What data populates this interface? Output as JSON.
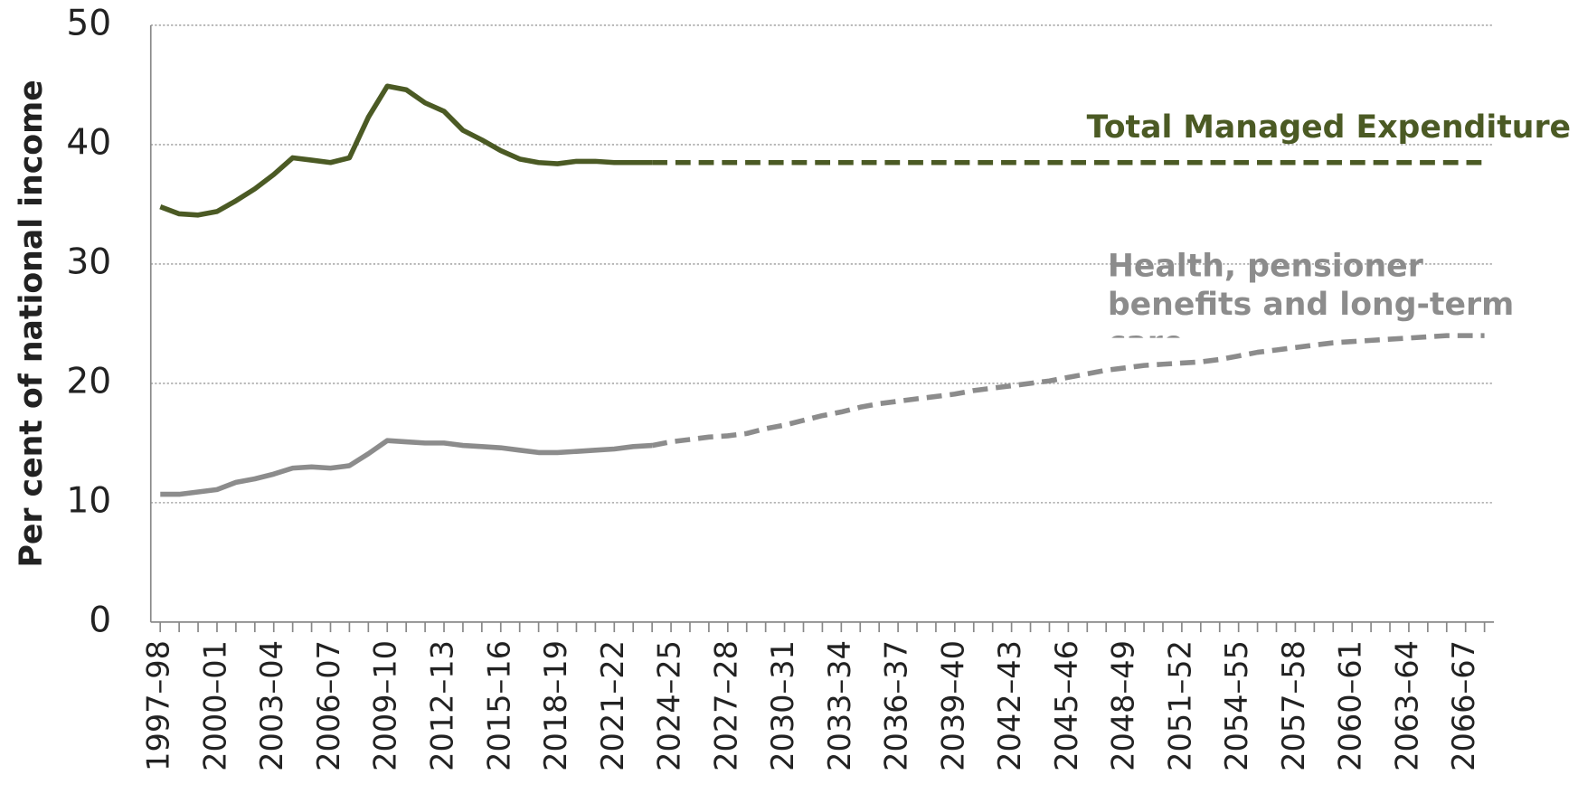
{
  "chart_data": {
    "type": "line",
    "y_label": "Per cent of national income",
    "categories": [
      "1997–98",
      null,
      null,
      "2000–01",
      null,
      null,
      "2003–04",
      null,
      null,
      "2006–07",
      null,
      null,
      "2009–10",
      null,
      null,
      "2012–13",
      null,
      null,
      "2015–16",
      null,
      null,
      "2018–19",
      null,
      null,
      "2021–22",
      null,
      null,
      "2024–25",
      null,
      null,
      "2027–28",
      null,
      null,
      "2030–31",
      null,
      null,
      "2033–34",
      null,
      null,
      "2036–37",
      null,
      null,
      "2039–40",
      null,
      null,
      "2042–43",
      null,
      null,
      "2045–46",
      null,
      null,
      "2048–49",
      null,
      null,
      "2051–52",
      null,
      null,
      "2054–55",
      null,
      null,
      "2057–58",
      null,
      null,
      "2060–61",
      null,
      null,
      "2063–64",
      null,
      null,
      "2066–67",
      null
    ],
    "series": [
      {
        "name": "Total Managed Expenditure",
        "color": "#4b5a24",
        "dashed_from_index": 26,
        "values": [
          34.8,
          34.2,
          34.1,
          34.4,
          35.3,
          36.3,
          37.5,
          38.9,
          38.7,
          38.5,
          38.9,
          42.3,
          44.9,
          44.6,
          43.5,
          42.8,
          41.2,
          40.4,
          39.5,
          38.8,
          38.5,
          38.4,
          38.6,
          38.6,
          38.5,
          38.5,
          38.5,
          38.5,
          38.5,
          38.5,
          38.5,
          38.5,
          38.5,
          38.5,
          38.5,
          38.5,
          38.5,
          38.5,
          38.5,
          38.5,
          38.5,
          38.5,
          38.5,
          38.5,
          38.5,
          38.5,
          38.5,
          38.5,
          38.5,
          38.5,
          38.5,
          38.5,
          38.5,
          38.5,
          38.5,
          38.5,
          38.5,
          38.5,
          38.5,
          38.5,
          38.5,
          38.5,
          38.5,
          38.5,
          38.5,
          38.5,
          38.5,
          38.5,
          38.5,
          38.5,
          38.5
        ]
      },
      {
        "name": "Health, pensioner benefits and long-term care",
        "color": "#8c8c8c",
        "dashed_from_index": 26,
        "values": [
          10.7,
          10.7,
          10.9,
          11.1,
          11.7,
          12.0,
          12.4,
          12.9,
          13.0,
          12.9,
          13.1,
          14.1,
          15.2,
          15.1,
          15.0,
          15.0,
          14.8,
          14.7,
          14.6,
          14.4,
          14.2,
          14.2,
          14.3,
          14.4,
          14.5,
          14.7,
          14.8,
          15.1,
          15.3,
          15.5,
          15.6,
          15.8,
          16.2,
          16.5,
          16.9,
          17.3,
          17.6,
          18.0,
          18.3,
          18.5,
          18.7,
          18.9,
          19.1,
          19.4,
          19.6,
          19.8,
          20.0,
          20.2,
          20.5,
          20.8,
          21.1,
          21.3,
          21.5,
          21.6,
          21.7,
          21.8,
          22.0,
          22.3,
          22.6,
          22.8,
          23.0,
          23.2,
          23.4,
          23.5,
          23.6,
          23.7,
          23.8,
          23.9,
          24.0,
          24.0,
          24.0
        ]
      }
    ],
    "ylim": [
      0,
      50
    ],
    "yticks": [
      0,
      10,
      20,
      30,
      40,
      50
    ],
    "grid": true
  }
}
